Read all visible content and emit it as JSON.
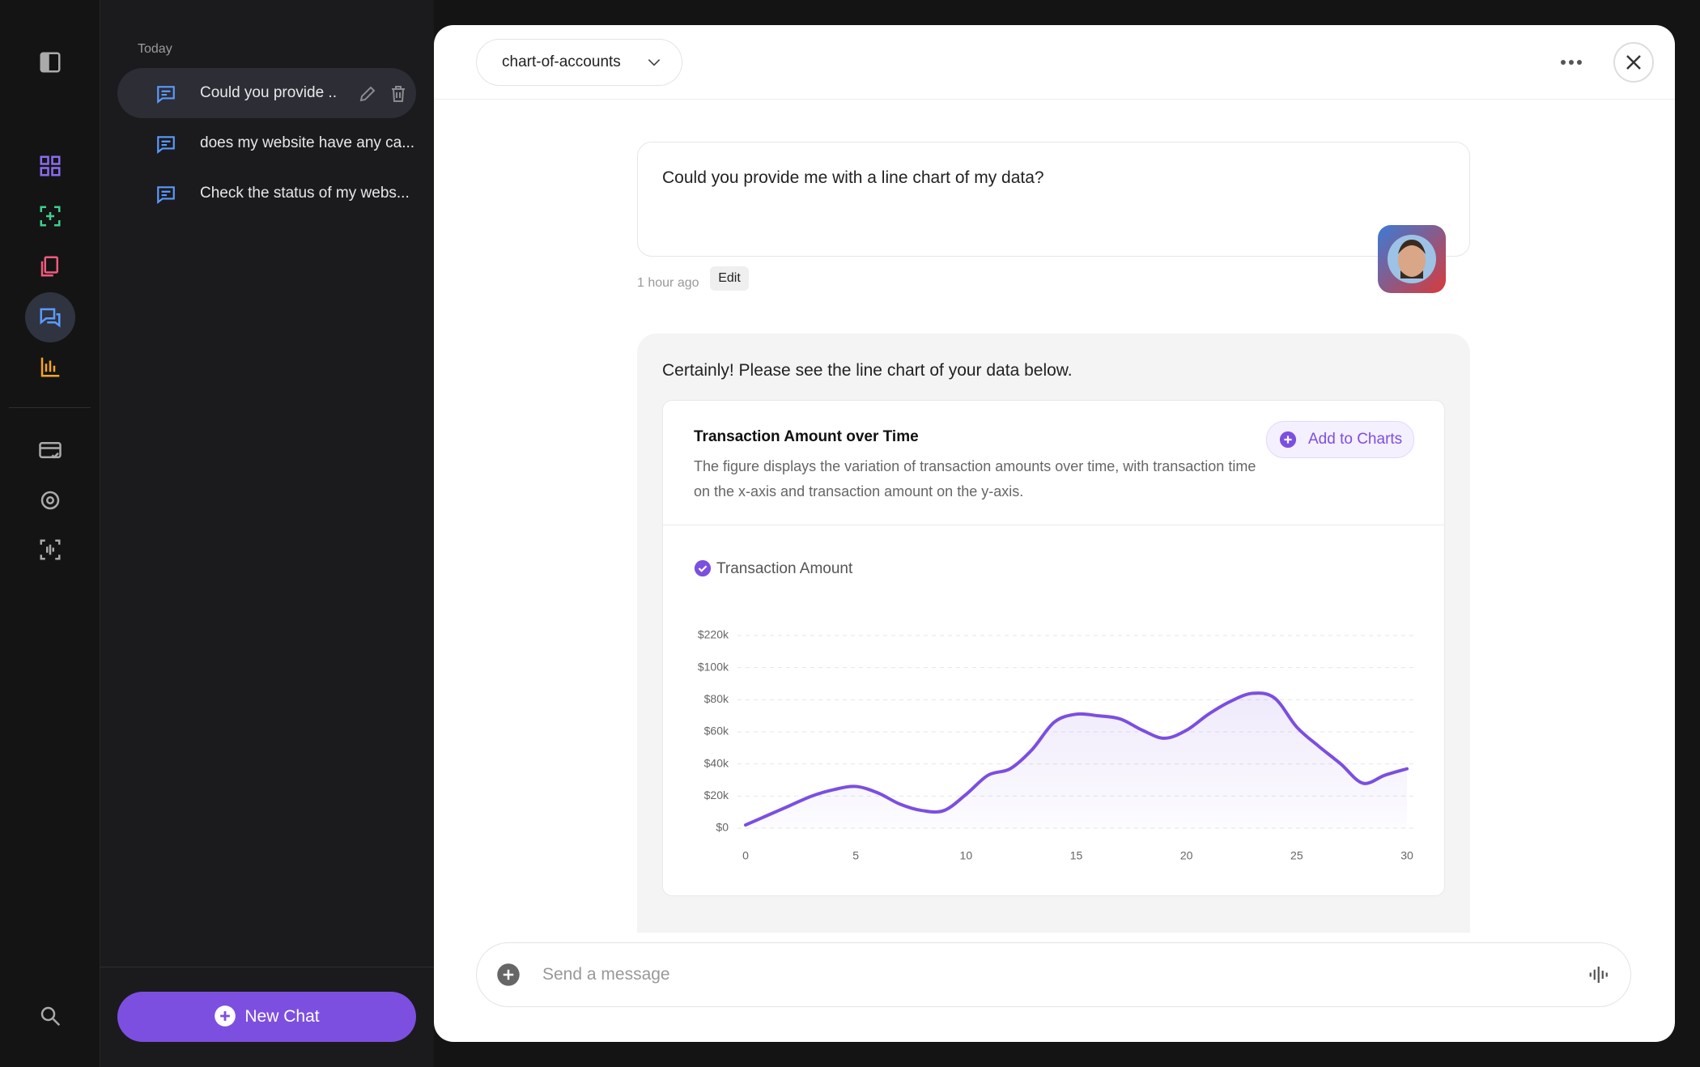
{
  "sidebar": {
    "section": "Today",
    "chats": [
      "Could you provide ..",
      "does my website have any ca...",
      "Check the status of my webs..."
    ],
    "new_chat": "New Chat"
  },
  "header": {
    "dataset": "chart-of-accounts"
  },
  "user_message": {
    "text": "Could you provide me with a line chart of my data?",
    "time": "1 hour ago",
    "edit": "Edit"
  },
  "assistant_message": {
    "text": "Certainly! Please see the line chart of your data below.",
    "add_button": "Add to Charts"
  },
  "chart_data": {
    "type": "line",
    "title": "Transaction Amount over Time",
    "subtitle": "The figure displays the variation of transaction amounts over time, with transaction time on the x-axis and transaction amount on the y-axis.",
    "x": [
      0,
      1,
      2,
      3,
      4,
      5,
      6,
      7,
      8,
      9,
      10,
      11,
      12,
      13,
      14,
      15,
      16,
      17,
      18,
      19,
      20,
      21,
      22,
      23,
      24,
      25,
      26,
      27,
      28,
      29,
      30
    ],
    "series": [
      {
        "name": "Transaction Amount",
        "color": "#7b4fe0",
        "values": [
          2000,
          8000,
          14000,
          20000,
          24000,
          26000,
          22000,
          15000,
          11000,
          11000,
          21000,
          33000,
          37000,
          49000,
          66000,
          71000,
          70000,
          68000,
          61000,
          56000,
          61000,
          71000,
          79000,
          84000,
          81000,
          63000,
          51000,
          40000,
          28000,
          33000,
          37000
        ]
      }
    ],
    "xlim": [
      0,
      30
    ],
    "xticks": [
      0,
      5,
      10,
      15,
      20,
      25,
      30
    ],
    "ylim": [
      0,
      220000
    ],
    "yticks": [
      {
        "value": 0,
        "label": "$0"
      },
      {
        "value": 20000,
        "label": "$20k"
      },
      {
        "value": 40000,
        "label": "$40k"
      },
      {
        "value": 60000,
        "label": "$60k"
      },
      {
        "value": 80000,
        "label": "$80k"
      },
      {
        "value": 100000,
        "label": "$100k"
      },
      {
        "value": 220000,
        "label": "$220k"
      }
    ],
    "grid": true
  },
  "composer": {
    "placeholder": "Send a message"
  }
}
